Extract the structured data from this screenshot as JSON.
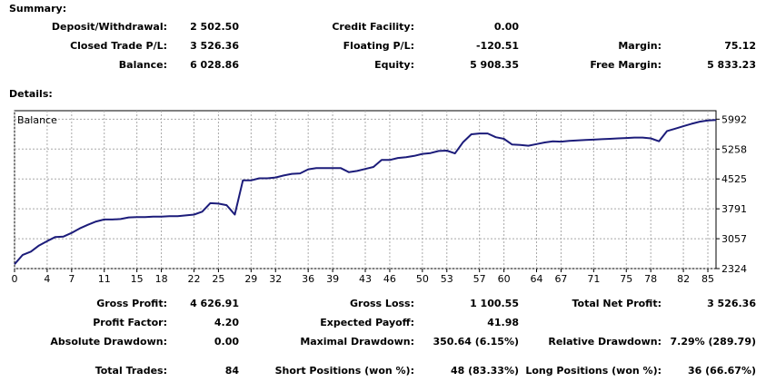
{
  "summary": {
    "title": "Summary:",
    "rows": [
      [
        {
          "label": "Deposit/Withdrawal:",
          "value": "2 502.50"
        },
        {
          "label": "Credit Facility:",
          "value": "0.00"
        },
        {
          "label": "",
          "value": ""
        }
      ],
      [
        {
          "label": "Closed Trade P/L:",
          "value": "3 526.36"
        },
        {
          "label": "Floating P/L:",
          "value": "-120.51"
        },
        {
          "label": "Margin:",
          "value": "75.12"
        }
      ],
      [
        {
          "label": "Balance:",
          "value": "6 028.86"
        },
        {
          "label": "Equity:",
          "value": "5 908.35"
        },
        {
          "label": "Free Margin:",
          "value": "5 833.23"
        }
      ]
    ]
  },
  "details": {
    "title": "Details:",
    "stats": [
      [
        {
          "label": "Gross Profit:",
          "value": "4 626.91"
        },
        {
          "label": "Gross Loss:",
          "value": "1 100.55"
        },
        {
          "label": "Total Net Profit:",
          "value": "3 526.36"
        }
      ],
      [
        {
          "label": "Profit Factor:",
          "value": "4.20"
        },
        {
          "label": "Expected Payoff:",
          "value": "41.98"
        },
        {
          "label": "",
          "value": ""
        }
      ],
      [
        {
          "label": "Absolute Drawdown:",
          "value": "0.00"
        },
        {
          "label": "Maximal Drawdown:",
          "value": "350.64 (6.15%)"
        },
        {
          "label": "Relative Drawdown:",
          "value": "7.29% (289.79)"
        }
      ],
      [
        {
          "label": "Total Trades:",
          "value": "84"
        },
        {
          "label": "Short Positions (won %):",
          "value": "48 (83.33%)"
        },
        {
          "label": "Long Positions (won %):",
          "value": "36 (66.67%)"
        }
      ]
    ]
  },
  "chart_data": {
    "type": "line",
    "title": "Balance",
    "xlabel": "",
    "ylabel": "",
    "x_ticks": [
      "0",
      "4",
      "7",
      "11",
      "15",
      "18",
      "22",
      "25",
      "29",
      "32",
      "36",
      "39",
      "43",
      "46",
      "50",
      "53",
      "57",
      "60",
      "64",
      "67",
      "71",
      "75",
      "78",
      "82",
      "85"
    ],
    "y_ticks": [
      "2324",
      "3057",
      "3791",
      "4525",
      "5258",
      "5992"
    ],
    "xlim": [
      0,
      86
    ],
    "ylim": [
      2324,
      6200
    ],
    "grid": true,
    "line_color": "#1c1c7a",
    "series": [
      {
        "name": "Balance",
        "x": [
          0,
          1,
          2,
          3,
          4,
          5,
          6,
          7,
          8,
          9,
          10,
          11,
          12,
          13,
          14,
          15,
          16,
          17,
          18,
          19,
          20,
          21,
          22,
          23,
          24,
          25,
          26,
          27,
          28,
          29,
          30,
          31,
          32,
          33,
          34,
          35,
          36,
          37,
          38,
          39,
          40,
          41,
          42,
          43,
          44,
          45,
          46,
          47,
          48,
          49,
          50,
          51,
          52,
          53,
          54,
          55,
          56,
          57,
          58,
          59,
          60,
          61,
          62,
          63,
          64,
          65,
          66,
          67,
          68,
          69,
          70,
          71,
          72,
          73,
          74,
          75,
          76,
          77,
          78,
          79,
          80,
          81,
          82,
          83,
          84,
          85,
          86
        ],
        "values": [
          2430,
          2660,
          2740,
          2890,
          3000,
          3100,
          3110,
          3200,
          3310,
          3400,
          3480,
          3530,
          3530,
          3540,
          3580,
          3590,
          3590,
          3600,
          3600,
          3610,
          3610,
          3630,
          3650,
          3720,
          3930,
          3920,
          3880,
          3650,
          4490,
          4490,
          4540,
          4540,
          4560,
          4610,
          4650,
          4660,
          4760,
          4790,
          4790,
          4790,
          4790,
          4690,
          4720,
          4770,
          4820,
          4990,
          4990,
          5040,
          5060,
          5090,
          5140,
          5160,
          5210,
          5220,
          5150,
          5430,
          5620,
          5640,
          5640,
          5550,
          5510,
          5370,
          5360,
          5340,
          5380,
          5420,
          5450,
          5440,
          5460,
          5470,
          5480,
          5490,
          5500,
          5510,
          5520,
          5530,
          5540,
          5540,
          5520,
          5450,
          5700,
          5760,
          5820,
          5880,
          5930,
          5960,
          5970
        ]
      }
    ]
  }
}
